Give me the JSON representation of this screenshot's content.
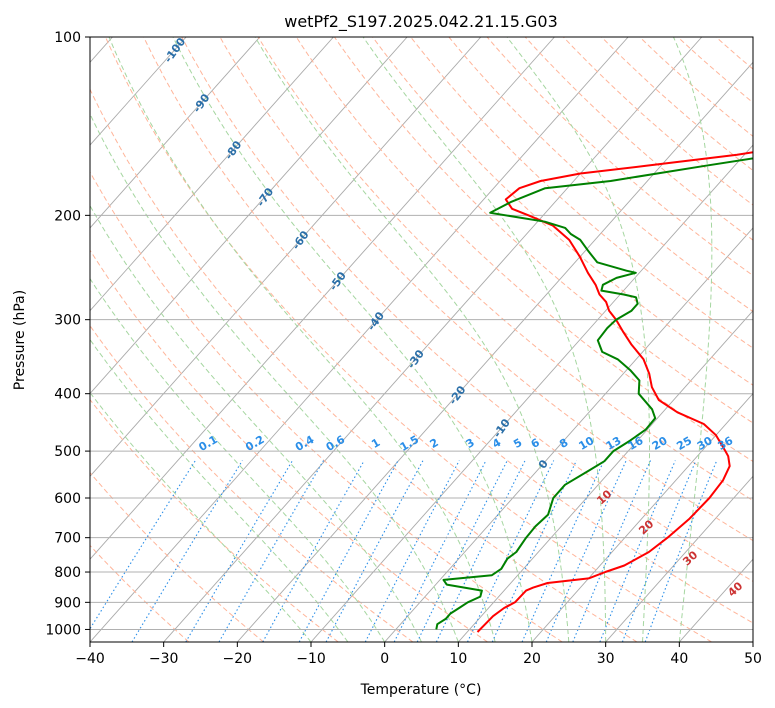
{
  "chart_data": {
    "type": "line",
    "subtype": "skew-t log-p diagram",
    "title": "wetPf2_S197.2025.042.21.15.G03",
    "xlabel": "Temperature (°C)",
    "ylabel": "Pressure (hPa)",
    "xlim": [
      -40,
      50
    ],
    "ylim": [
      1050,
      100
    ],
    "y_scale": "log",
    "grid": true,
    "x_ticks": [
      -40,
      -30,
      -20,
      -10,
      0,
      10,
      20,
      30,
      40,
      50
    ],
    "x_tick_labels": [
      "−40",
      "−30",
      "−20",
      "−10",
      "0",
      "10",
      "20",
      "30",
      "40",
      "50"
    ],
    "y_ticks": [
      100,
      200,
      300,
      400,
      500,
      600,
      700,
      800,
      900,
      1000
    ],
    "y_tick_labels": [
      "100",
      "200",
      "300",
      "400",
      "500",
      "600",
      "700",
      "800",
      "900",
      "1000"
    ],
    "colors": {
      "temperature": "#ff0000",
      "dewpoint": "#008000",
      "isotherm": "#aaaaaa",
      "dry_adiabat": "#ffb59a",
      "moist_adiabat": "#a5d6a0",
      "mixing_ratio": "#2a8ee8",
      "isotherm_label": "#2b6fa8",
      "wetbulb_label": "#cc3333",
      "grid": "#b0b0b0"
    },
    "series": [
      {
        "key": "temperature",
        "x": [
          11.4,
          11.5,
          11.6,
          12.1,
          12.9,
          13,
          13.6,
          15,
          20,
          21.5,
          23.3,
          25,
          25.8,
          26.5,
          26.7,
          26.4,
          25.6,
          24.2,
          23.2,
          20,
          17,
          12,
          8,
          5.5,
          3.5,
          1,
          -2.5,
          -5,
          -7.5,
          -9.5,
          -11,
          -12.8,
          -14.5,
          -17,
          -20,
          -23.5,
          -27.5,
          -32,
          -35,
          -37,
          -36.5,
          -34.5,
          -30,
          -22,
          -11,
          -1,
          4,
          3,
          4,
          5.5,
          5.5,
          5.5,
          6,
          13,
          24,
          33
        ],
        "y": [
          1010,
          980,
          950,
          920,
          900,
          860,
          850,
          835,
          820,
          800,
          780,
          740,
          700,
          650,
          600,
          560,
          530,
          510,
          500,
          470,
          450,
          430,
          410,
          390,
          370,
          350,
          330,
          315,
          300,
          290,
          280,
          272,
          262,
          250,
          235,
          220,
          208,
          200,
          195,
          188,
          180,
          175,
          170,
          165,
          158,
          150,
          145,
          142,
          138,
          133,
          128,
          123,
          120,
          115,
          108,
          100
        ]
      },
      {
        "key": "dewpoint",
        "x": [
          5.5,
          5,
          5.5,
          5.5,
          6,
          6.5,
          7.5,
          7,
          1.5,
          0.5,
          6.5,
          7,
          6.6,
          7,
          6.6,
          6.5,
          6.8,
          5.5,
          5.5,
          7,
          8,
          8,
          9,
          9.8,
          9.7,
          8.2,
          4.5,
          3,
          0.5,
          -2.5,
          -5.5,
          -7.5,
          -7.7,
          -7.5,
          -6.5,
          -6.5,
          -7.5,
          -9.5,
          -13,
          -13.5,
          -12.5,
          -10.5,
          -12,
          -17,
          -19.5,
          -22,
          -24,
          -25.5,
          -29,
          -37.5,
          -36,
          -33,
          -25,
          -14,
          -2,
          2.5,
          2.5,
          2.5,
          3,
          5.5,
          4.5,
          0.5,
          -4
        ],
        "y": [
          1000,
          980,
          960,
          940,
          920,
          900,
          880,
          860,
          840,
          825,
          810,
          790,
          760,
          740,
          700,
          670,
          640,
          600,
          570,
          540,
          520,
          500,
          480,
          460,
          440,
          425,
          400,
          380,
          365,
          350,
          340,
          325,
          310,
          300,
          290,
          282,
          275,
          272,
          268,
          262,
          255,
          250,
          248,
          240,
          230,
          220,
          215,
          210,
          205,
          198,
          190,
          180,
          175,
          165,
          155,
          150,
          140,
          130,
          125,
          120,
          115,
          108,
          100
        ]
      }
    ],
    "isotherm_labels": [
      "-100",
      "-90",
      "-80",
      "-70",
      "-60",
      "-50",
      "-40",
      "-30",
      "-20",
      "-10",
      "0"
    ],
    "wetbulb_labels": [
      "10",
      "20",
      "30",
      "40"
    ],
    "mixing_ratio_labels": [
      "0.1",
      "0.2",
      "0.4",
      "0.6",
      "1",
      "1.5",
      "2",
      "3",
      "4",
      "5",
      "6",
      "8",
      "10",
      "13",
      "16",
      "20",
      "25",
      "30",
      "36"
    ]
  }
}
